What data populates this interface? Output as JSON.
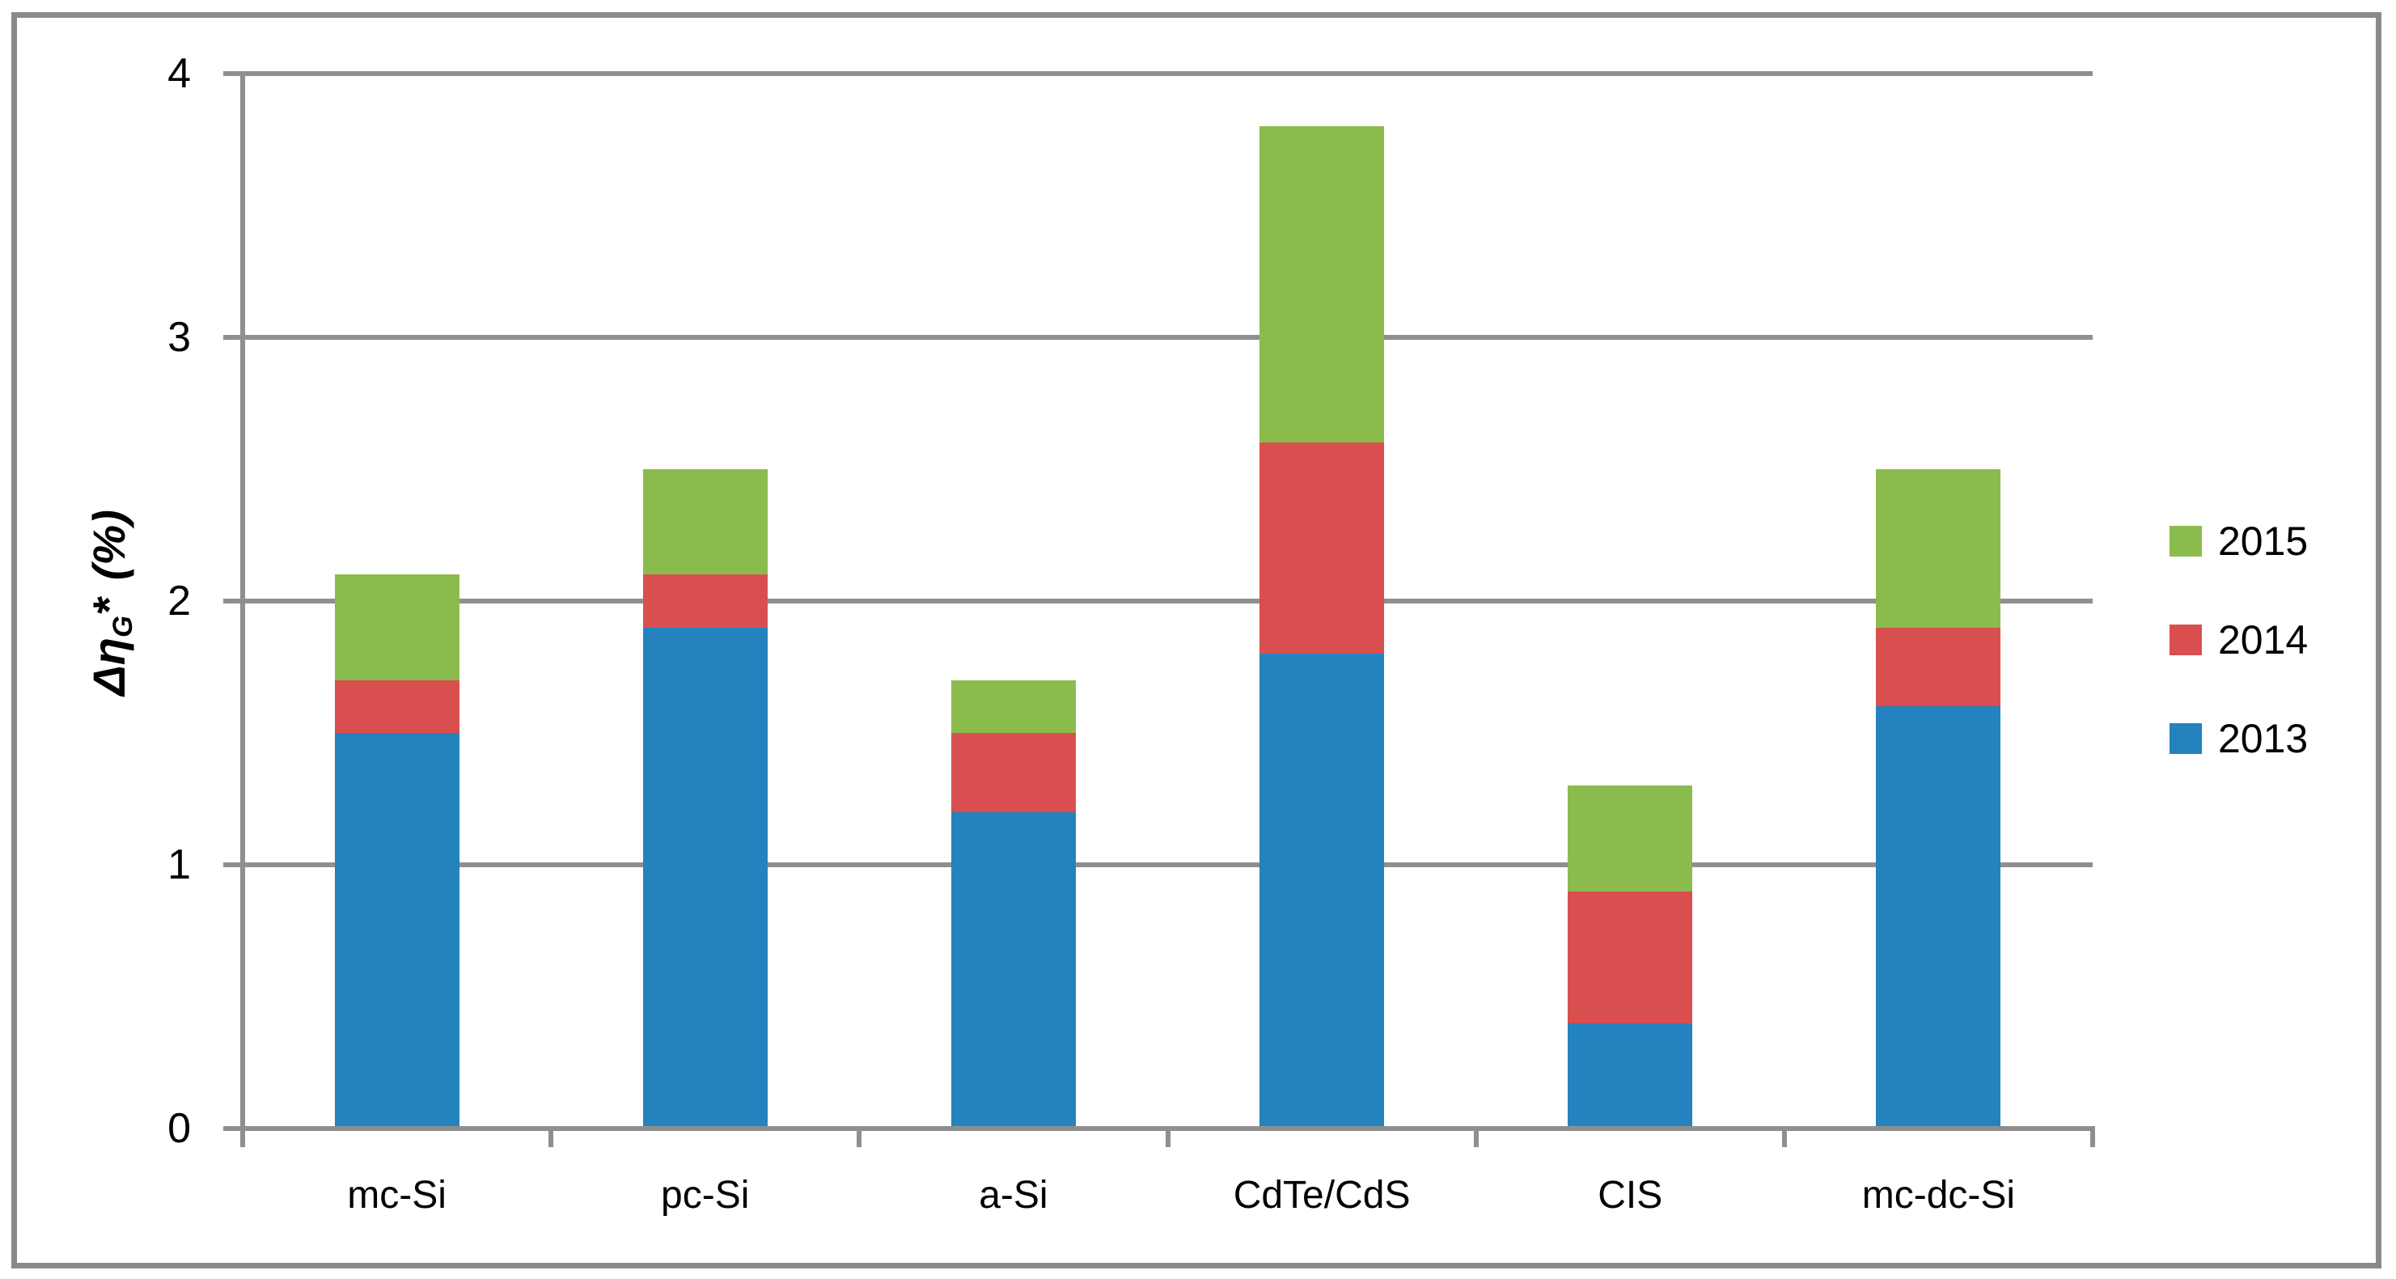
{
  "colors": {
    "frame": "#8a8a8a",
    "gridline": "#8f8f8f",
    "axis": "#8f8f8f",
    "background": "#ffffff",
    "series_2013": "#2482be",
    "series_2014": "#d94f4f",
    "series_2015": "#8cbb4d"
  },
  "y_axis_title": {
    "prefix": "Δη",
    "subscript": "G",
    "star": "*",
    "unit": "(%)"
  },
  "chart_data": {
    "type": "bar",
    "stacked": true,
    "title": "",
    "xlabel": "",
    "ylabel": "ΔηG* (%)",
    "categories": [
      "mc-Si",
      "pc-Si",
      "a-Si",
      "CdTe/CdS",
      "CIS",
      "mc-dc-Si"
    ],
    "series": [
      {
        "name": "2013",
        "color": "#2482be",
        "values": [
          1.5,
          1.9,
          1.2,
          1.8,
          0.4,
          1.6
        ]
      },
      {
        "name": "2014",
        "color": "#d94f4f",
        "values": [
          0.2,
          0.2,
          0.3,
          0.8,
          0.5,
          0.3
        ]
      },
      {
        "name": "2015",
        "color": "#8cbb4d",
        "values": [
          0.4,
          0.4,
          0.2,
          1.2,
          0.4,
          0.6
        ]
      }
    ],
    "stack_totals": [
      2.1,
      2.5,
      1.7,
      3.8,
      1.3,
      2.5
    ],
    "ylim": [
      0,
      4
    ],
    "y_ticks": [
      "0",
      "1",
      "2",
      "3",
      "4"
    ],
    "grid": true,
    "legend_position": "right-middle",
    "legend_order": [
      "2015",
      "2014",
      "2013"
    ]
  }
}
